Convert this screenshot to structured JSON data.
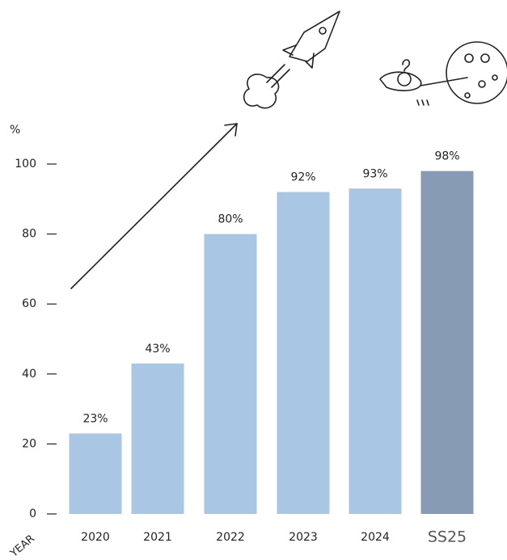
{
  "chart_data": {
    "type": "bar",
    "y_label": "%",
    "x_label": "YEAR",
    "categories": [
      "2020",
      "2021",
      "2022",
      "2023",
      "2024",
      "SS25"
    ],
    "values": [
      23,
      43,
      80,
      92,
      93,
      98
    ],
    "value_labels": [
      "23%",
      "43%",
      "80%",
      "92%",
      "93%",
      "98%"
    ],
    "colors": [
      "#a9c6e4",
      "#a9c6e4",
      "#a9c6e4",
      "#a9c6e4",
      "#a9c6e4",
      "#879bb4"
    ],
    "ylim": [
      0,
      100
    ],
    "yticks": [
      0,
      20,
      40,
      60,
      80,
      100
    ],
    "grid": false
  }
}
